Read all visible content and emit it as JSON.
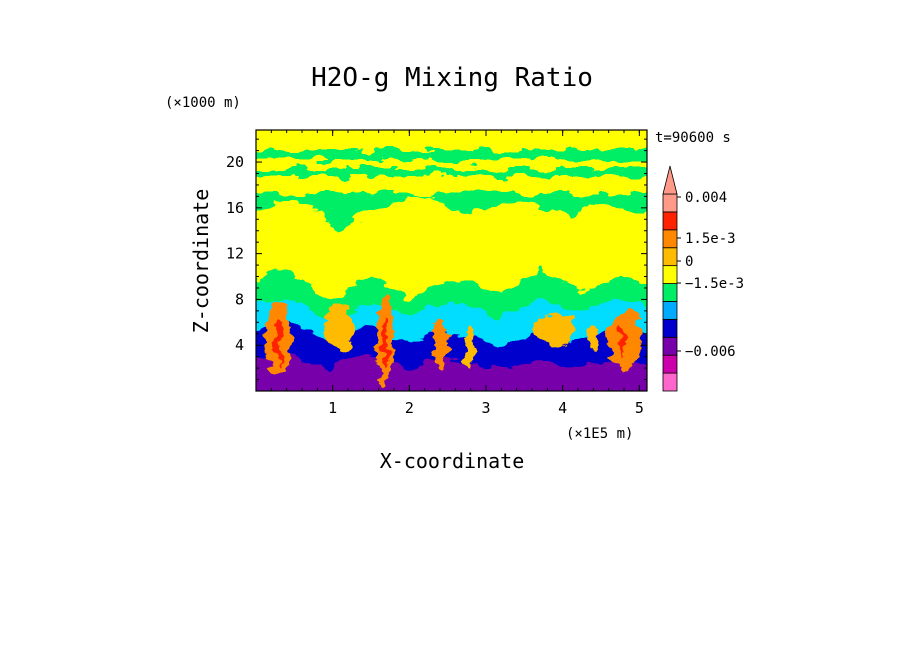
{
  "chart_data": {
    "type": "heatmap",
    "title": "H2O-g Mixing Ratio",
    "xlabel": "X-coordinate",
    "ylabel": "Z-coordinate",
    "x_unit": "(×1E5 m)",
    "y_unit": "(×1000 m)",
    "time_label": "t=90600 s",
    "xlim": [
      0,
      5.1
    ],
    "ylim": [
      0,
      22.8
    ],
    "x_ticks": [
      1,
      2,
      3,
      4,
      5
    ],
    "y_ticks": [
      4,
      8,
      12,
      16,
      20
    ],
    "colorbar": {
      "levels": [
        "0.004",
        "1.5e-3",
        "0",
        "−1.5e-3",
        "−0.006"
      ],
      "colors": [
        "#ff66cc",
        "#cc00aa",
        "#7700aa",
        "#0000cc",
        "#00aaff",
        "#00ee66",
        "#ffff00",
        "#ffbb00",
        "#ff8800",
        "#ff2200",
        "#ff9988"
      ]
    }
  }
}
